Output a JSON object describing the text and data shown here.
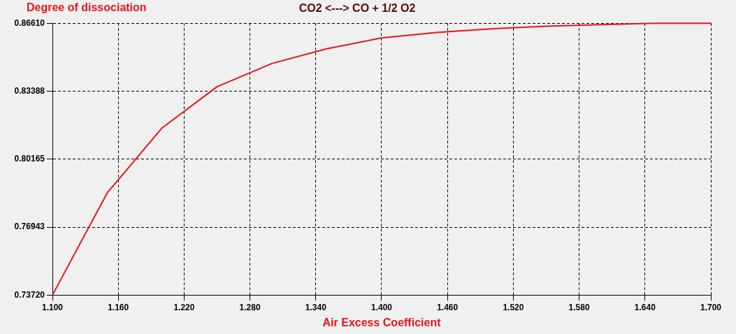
{
  "chart_data": {
    "type": "line",
    "title": "CO2 <---> CO + 1/2 O2",
    "ylabel": "Degree of dissociation",
    "xlabel": "Air Excess Coefficient",
    "x": [
      1.1,
      1.15,
      1.2,
      1.25,
      1.3,
      1.35,
      1.4,
      1.45,
      1.5,
      1.55,
      1.6,
      1.65,
      1.7
    ],
    "series": [
      {
        "color": "#e8141b",
        "values": [
          0.7372,
          0.7857,
          0.8165,
          0.836,
          0.847,
          0.854,
          0.8591,
          0.8617,
          0.8634,
          0.8647,
          0.8654,
          0.8661,
          0.8661
        ]
      }
    ],
    "xlim": [
      1.1,
      1.7
    ],
    "xticks": [
      {
        "value": 1.1,
        "label": "1.100"
      },
      {
        "value": 1.16,
        "label": "1.160"
      },
      {
        "value": 1.22,
        "label": "1.220"
      },
      {
        "value": 1.28,
        "label": "1.280"
      },
      {
        "value": 1.34,
        "label": "1.340"
      },
      {
        "value": 1.4,
        "label": "1.400"
      },
      {
        "value": 1.46,
        "label": "1.460"
      },
      {
        "value": 1.52,
        "label": "1.520"
      },
      {
        "value": 1.58,
        "label": "1.580"
      },
      {
        "value": 1.64,
        "label": "1.640"
      },
      {
        "value": 1.7,
        "label": "1.700"
      }
    ],
    "ylim": [
      0.7372,
      0.8661
    ],
    "yticks": [
      {
        "value": 0.7372,
        "label": "0.73720"
      },
      {
        "value": 0.76943,
        "label": "0.76943"
      },
      {
        "value": 0.80165,
        "label": "0.80165"
      },
      {
        "value": 0.83388,
        "label": "0.83388"
      },
      {
        "value": 0.8661,
        "label": "0.86610"
      }
    ],
    "grid": true,
    "marker": "none",
    "line_style": "solid",
    "legend": false
  }
}
